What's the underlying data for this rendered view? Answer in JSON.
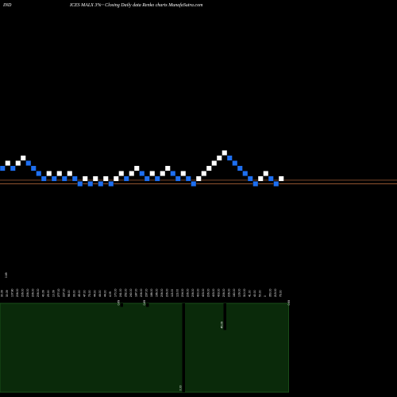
{
  "header": {
    "left": "IND",
    "center": "ICES MALX 3%~ Closing Daily data Renko charts MunafaSutra.com"
  },
  "chart_data": {
    "type": "renko",
    "box_size_percent": 3,
    "colors": {
      "up": "#ffffff",
      "down": "#1e6ff0",
      "reference_line": "#c07040",
      "volume_panel": "#0a2a0a",
      "volume_panel_border": "#1f5a1f",
      "volume_bar": "#000000"
    },
    "bricks": [
      {
        "dir": "down",
        "level": 0
      },
      {
        "dir": "up",
        "level": 1
      },
      {
        "dir": "down",
        "level": 0
      },
      {
        "dir": "up",
        "level": 1
      },
      {
        "dir": "up",
        "level": 2
      },
      {
        "dir": "down",
        "level": 1
      },
      {
        "dir": "down",
        "level": 0
      },
      {
        "dir": "down",
        "level": -1
      },
      {
        "dir": "down",
        "level": -2
      },
      {
        "dir": "up",
        "level": -1
      },
      {
        "dir": "down",
        "level": -2
      },
      {
        "dir": "up",
        "level": -1
      },
      {
        "dir": "down",
        "level": -2
      },
      {
        "dir": "up",
        "level": -1
      },
      {
        "dir": "down",
        "level": -2
      },
      {
        "dir": "down",
        "level": -3
      },
      {
        "dir": "up",
        "level": -2
      },
      {
        "dir": "down",
        "level": -3
      },
      {
        "dir": "up",
        "level": -2
      },
      {
        "dir": "down",
        "level": -3
      },
      {
        "dir": "up",
        "level": -2
      },
      {
        "dir": "down",
        "level": -3
      },
      {
        "dir": "up",
        "level": -2
      },
      {
        "dir": "up",
        "level": -1
      },
      {
        "dir": "down",
        "level": -2
      },
      {
        "dir": "up",
        "level": -1
      },
      {
        "dir": "up",
        "level": 0
      },
      {
        "dir": "down",
        "level": -1
      },
      {
        "dir": "down",
        "level": -2
      },
      {
        "dir": "up",
        "level": -1
      },
      {
        "dir": "down",
        "level": -2
      },
      {
        "dir": "up",
        "level": -1
      },
      {
        "dir": "up",
        "level": 0
      },
      {
        "dir": "down",
        "level": -1
      },
      {
        "dir": "down",
        "level": -2
      },
      {
        "dir": "up",
        "level": -1
      },
      {
        "dir": "down",
        "level": -2
      },
      {
        "dir": "down",
        "level": -3
      },
      {
        "dir": "up",
        "level": -2
      },
      {
        "dir": "up",
        "level": -1
      },
      {
        "dir": "up",
        "level": 0
      },
      {
        "dir": "up",
        "level": 1
      },
      {
        "dir": "up",
        "level": 2
      },
      {
        "dir": "up",
        "level": 3
      },
      {
        "dir": "down",
        "level": 2
      },
      {
        "dir": "down",
        "level": 1
      },
      {
        "dir": "down",
        "level": 0
      },
      {
        "dir": "down",
        "level": -1
      },
      {
        "dir": "down",
        "level": -2
      },
      {
        "dir": "down",
        "level": -3
      },
      {
        "dir": "up",
        "level": -2
      },
      {
        "dir": "up",
        "level": -1
      },
      {
        "dir": "down",
        "level": -2
      },
      {
        "dir": "down",
        "level": -3
      },
      {
        "dir": "up",
        "level": -2
      }
    ],
    "reference_levels": [
      -2.3,
      -3.0
    ],
    "x_labels": [
      "30.09",
      "30.09",
      "107.80",
      "206.00",
      "206.00",
      "206.00",
      "206.00",
      "206.00",
      "40.09",
      "25.00",
      "10.09",
      "277.00",
      "227.00",
      "98.00",
      "33.00",
      "45.00",
      "47.00",
      "73.00",
      "44.00",
      "44.00",
      "44.00",
      "4.09",
      "170.00",
      "241.00",
      "252.00",
      "240.00",
      "187.00",
      "206.00",
      "237.00",
      "186.00",
      "196.00",
      "206.00",
      "206.00",
      "113.00",
      "113.00",
      "204.00",
      "206.00",
      "206.00",
      "400.00",
      "403.00",
      "206.00",
      "403.00",
      "403.00",
      "206.00",
      "206.00",
      "180.00",
      "109.00",
      "310.00",
      "41.00",
      "40.00",
      "50.00",
      "0",
      "350.00",
      "215.00",
      "73.00"
    ],
    "volume": [
      0.42,
      0.42,
      0.42,
      0.42,
      0.42,
      0.42,
      0.42,
      0.42,
      0.42,
      0.42,
      0.42,
      0.42,
      0.42,
      0.42,
      0.42,
      0.42,
      0.42,
      0.42,
      0.42,
      0.42,
      0.42,
      0.42,
      0.42,
      0.42,
      0.42,
      0.42,
      0.42,
      0.42,
      0.42,
      0.42,
      0.42,
      0.42,
      0.42,
      0.42,
      0.42,
      0.42,
      0.42,
      0.42,
      0.42,
      0.42,
      0.42,
      0.42,
      0.42,
      0.42,
      0.42,
      0.42,
      0.42,
      0.42,
      0.42,
      0.42,
      0.42,
      0.42,
      0.42,
      0.42,
      0.42
    ],
    "spike_markers": [
      {
        "label": "0.69",
        "index": 23,
        "depth": 0.04
      },
      {
        "label": "0.69",
        "index": 28,
        "depth": 0.04
      },
      {
        "label": "0.00",
        "index": 35,
        "depth": 1.0
      },
      {
        "label": "45.09",
        "index": 43,
        "depth": 0.3
      },
      {
        "label": "0.69",
        "index": 56,
        "depth": 0.04
      }
    ],
    "side_label": "0.69"
  }
}
